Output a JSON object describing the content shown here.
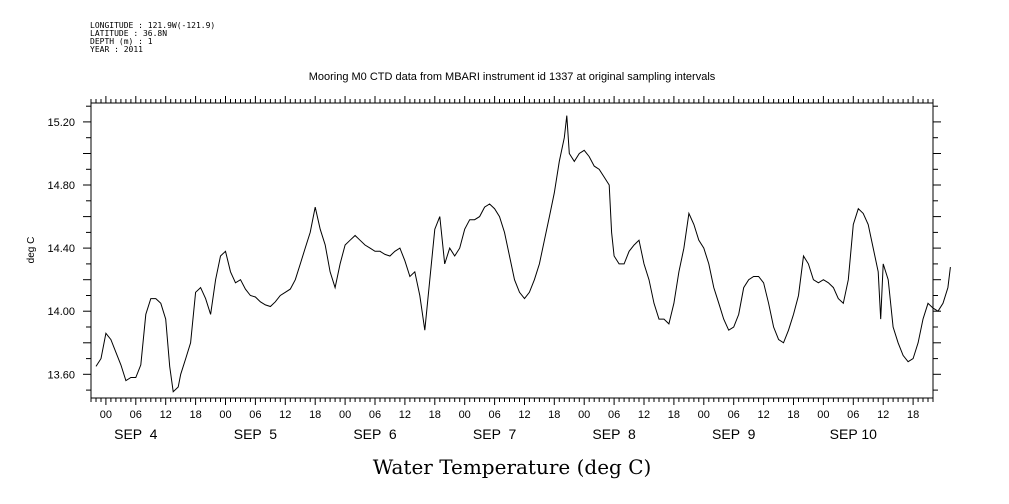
{
  "header": {
    "lines": [
      "LONGITUDE : 121.9W(-121.9)",
      "LATITUDE : 36.8N",
      "DEPTH (m) : 1",
      "YEAR : 2011"
    ]
  },
  "chart_data": {
    "type": "line",
    "title": "Mooring M0 CTD data from MBARI instrument id 1337 at original sampling intervals",
    "xlabel": "Water Temperature (deg C)",
    "ylabel": "deg C",
    "ylim": [
      13.45,
      15.32
    ],
    "yticks": [
      "13.60",
      "14.00",
      "14.40",
      "14.80",
      "15.20"
    ],
    "ytick_values": [
      13.6,
      14.0,
      14.4,
      14.8,
      15.2
    ],
    "xlim_hours": [
      -3,
      166
    ],
    "hour_labels": [
      "00",
      "06",
      "12",
      "18",
      "00",
      "06",
      "12",
      "18",
      "00",
      "06",
      "12",
      "18",
      "00",
      "06",
      "12",
      "18",
      "00",
      "06",
      "12",
      "18",
      "00",
      "06",
      "12",
      "18",
      "00",
      "06",
      "12",
      "18"
    ],
    "day_labels": [
      "SEP  4",
      "SEP  5",
      "SEP  6",
      "SEP  7",
      "SEP  8",
      "SEP  9",
      "SEP 10"
    ],
    "series": [
      {
        "points": [
          [
            -2.0,
            13.65
          ],
          [
            -1.0,
            13.7
          ],
          [
            0.0,
            13.86
          ],
          [
            1.0,
            13.82
          ],
          [
            2.0,
            13.74
          ],
          [
            3.0,
            13.66
          ],
          [
            4.0,
            13.56
          ],
          [
            5.0,
            13.58
          ],
          [
            6.0,
            13.58
          ],
          [
            7.0,
            13.66
          ],
          [
            8.0,
            13.98
          ],
          [
            9.0,
            14.08
          ],
          [
            10.0,
            14.08
          ],
          [
            11.0,
            14.05
          ],
          [
            12.0,
            13.95
          ],
          [
            12.8,
            13.65
          ],
          [
            13.5,
            13.49
          ],
          [
            14.5,
            13.52
          ],
          [
            15.0,
            13.6
          ],
          [
            16.0,
            13.7
          ],
          [
            17.0,
            13.8
          ],
          [
            18.0,
            14.12
          ],
          [
            19.0,
            14.15
          ],
          [
            20.0,
            14.08
          ],
          [
            21.0,
            13.98
          ],
          [
            22.0,
            14.2
          ],
          [
            23.0,
            14.35
          ],
          [
            24.0,
            14.38
          ],
          [
            25.0,
            14.25
          ],
          [
            26.0,
            14.18
          ],
          [
            27.0,
            14.2
          ],
          [
            28.0,
            14.14
          ],
          [
            29.0,
            14.1
          ],
          [
            30.0,
            14.09
          ],
          [
            31.0,
            14.06
          ],
          [
            32.0,
            14.04
          ],
          [
            33.0,
            14.03
          ],
          [
            34.0,
            14.06
          ],
          [
            35.0,
            14.1
          ],
          [
            36.0,
            14.12
          ],
          [
            37.0,
            14.14
          ],
          [
            38.0,
            14.2
          ],
          [
            39.0,
            14.3
          ],
          [
            40.0,
            14.4
          ],
          [
            41.0,
            14.5
          ],
          [
            42.0,
            14.66
          ],
          [
            43.0,
            14.52
          ],
          [
            44.0,
            14.42
          ],
          [
            45.0,
            14.25
          ],
          [
            46.0,
            14.15
          ],
          [
            47.0,
            14.3
          ],
          [
            48.0,
            14.42
          ],
          [
            49.0,
            14.45
          ],
          [
            50.0,
            14.48
          ],
          [
            51.0,
            14.45
          ],
          [
            52.0,
            14.42
          ],
          [
            53.0,
            14.4
          ],
          [
            54.0,
            14.38
          ],
          [
            55.0,
            14.38
          ],
          [
            56.0,
            14.36
          ],
          [
            57.0,
            14.35
          ],
          [
            58.0,
            14.38
          ],
          [
            59.0,
            14.4
          ],
          [
            60.0,
            14.32
          ],
          [
            61.0,
            14.22
          ],
          [
            62.0,
            14.25
          ],
          [
            63.0,
            14.1
          ],
          [
            64.0,
            13.88
          ],
          [
            65.0,
            14.2
          ],
          [
            66.0,
            14.52
          ],
          [
            67.0,
            14.6
          ],
          [
            68.0,
            14.3
          ],
          [
            69.0,
            14.4
          ],
          [
            70.0,
            14.35
          ],
          [
            71.0,
            14.4
          ],
          [
            72.0,
            14.52
          ],
          [
            73.0,
            14.58
          ],
          [
            74.0,
            14.58
          ],
          [
            75.0,
            14.6
          ],
          [
            76.0,
            14.66
          ],
          [
            77.0,
            14.68
          ],
          [
            78.0,
            14.65
          ],
          [
            79.0,
            14.6
          ],
          [
            80.0,
            14.5
          ],
          [
            81.0,
            14.35
          ],
          [
            82.0,
            14.2
          ],
          [
            83.0,
            14.12
          ],
          [
            84.0,
            14.08
          ],
          [
            85.0,
            14.12
          ],
          [
            86.0,
            14.2
          ],
          [
            87.0,
            14.3
          ],
          [
            88.0,
            14.45
          ],
          [
            89.0,
            14.6
          ],
          [
            90.0,
            14.75
          ],
          [
            91.0,
            14.95
          ],
          [
            92.0,
            15.1
          ],
          [
            92.5,
            15.24
          ],
          [
            93.0,
            15.0
          ],
          [
            94.0,
            14.95
          ],
          [
            95.0,
            15.0
          ],
          [
            96.0,
            15.02
          ],
          [
            97.0,
            14.98
          ],
          [
            98.0,
            14.92
          ],
          [
            99.0,
            14.9
          ],
          [
            100.0,
            14.85
          ],
          [
            101.0,
            14.8
          ],
          [
            101.5,
            14.5
          ],
          [
            102.0,
            14.35
          ],
          [
            103.0,
            14.3
          ],
          [
            104.0,
            14.3
          ],
          [
            105.0,
            14.38
          ],
          [
            106.0,
            14.42
          ],
          [
            107.0,
            14.45
          ],
          [
            108.0,
            14.3
          ],
          [
            109.0,
            14.2
          ],
          [
            110.0,
            14.05
          ],
          [
            111.0,
            13.95
          ],
          [
            112.0,
            13.95
          ],
          [
            113.0,
            13.92
          ],
          [
            114.0,
            14.05
          ],
          [
            115.0,
            14.25
          ],
          [
            116.0,
            14.4
          ],
          [
            117.0,
            14.62
          ],
          [
            118.0,
            14.55
          ],
          [
            119.0,
            14.45
          ],
          [
            120.0,
            14.4
          ],
          [
            121.0,
            14.3
          ],
          [
            122.0,
            14.15
          ],
          [
            123.0,
            14.05
          ],
          [
            124.0,
            13.95
          ],
          [
            125.0,
            13.88
          ],
          [
            126.0,
            13.9
          ],
          [
            127.0,
            13.98
          ],
          [
            128.0,
            14.15
          ],
          [
            129.0,
            14.2
          ],
          [
            130.0,
            14.22
          ],
          [
            131.0,
            14.22
          ],
          [
            132.0,
            14.18
          ],
          [
            133.0,
            14.05
          ],
          [
            134.0,
            13.9
          ],
          [
            135.0,
            13.82
          ],
          [
            136.0,
            13.8
          ],
          [
            137.0,
            13.88
          ],
          [
            138.0,
            13.98
          ],
          [
            139.0,
            14.1
          ],
          [
            140.0,
            14.35
          ],
          [
            141.0,
            14.3
          ],
          [
            142.0,
            14.2
          ],
          [
            143.0,
            14.18
          ],
          [
            144.0,
            14.2
          ],
          [
            145.0,
            14.18
          ],
          [
            146.0,
            14.15
          ],
          [
            147.0,
            14.08
          ],
          [
            148.0,
            14.05
          ],
          [
            149.0,
            14.2
          ],
          [
            150.0,
            14.55
          ],
          [
            151.0,
            14.65
          ],
          [
            152.0,
            14.62
          ],
          [
            153.0,
            14.55
          ],
          [
            154.0,
            14.4
          ],
          [
            155.0,
            14.25
          ],
          [
            155.5,
            13.95
          ],
          [
            156.0,
            14.3
          ],
          [
            157.0,
            14.2
          ],
          [
            158.0,
            13.9
          ],
          [
            159.0,
            13.8
          ],
          [
            160.0,
            13.72
          ],
          [
            161.0,
            13.68
          ],
          [
            162.0,
            13.7
          ],
          [
            163.0,
            13.8
          ],
          [
            164.0,
            13.95
          ],
          [
            165.0,
            14.05
          ],
          [
            166.0,
            14.02
          ],
          [
            167.0,
            14.0
          ],
          [
            168.0,
            14.05
          ],
          [
            169.0,
            14.15
          ],
          [
            169.5,
            14.28
          ]
        ]
      }
    ]
  }
}
